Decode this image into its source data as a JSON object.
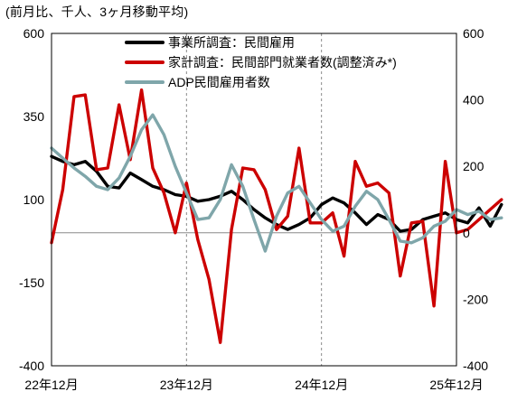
{
  "chart_data": {
    "type": "line",
    "unit_note": "(前月比、千人、3ヶ月移動平均)",
    "x_start": "2022-12",
    "x_end": "2025-12",
    "x_tick_labels": [
      "22年12月",
      "23年12月",
      "24年12月",
      "25年12月"
    ],
    "y_left_ticks": [
      600,
      350,
      100,
      -150,
      -400
    ],
    "y_right_ticks": [
      600,
      400,
      200,
      0,
      -200,
      -400
    ],
    "y_left_range": [
      -400,
      600
    ],
    "y_right_range": [
      -400,
      600
    ],
    "grid": "vertical dashed lines at each December, horizontal zero line",
    "legend_placement": "top-center",
    "series": [
      {
        "name": "事業所調査：民間雇用",
        "color": "#000000",
        "axis": "left",
        "values": [
          230,
          215,
          205,
          215,
          185,
          140,
          135,
          180,
          160,
          140,
          130,
          115,
          110,
          95,
          100,
          110,
          125,
          100,
          70,
          45,
          25,
          10,
          25,
          45,
          85,
          105,
          90,
          60,
          25,
          55,
          40,
          5,
          10,
          40,
          50,
          60,
          40,
          30,
          75,
          20,
          85
        ]
      },
      {
        "name": "家計調査：民間部門就業者数(調整済み*)",
        "color": "#cc0000",
        "axis": "right",
        "values": [
          -30,
          130,
          410,
          415,
          190,
          195,
          385,
          220,
          430,
          195,
          120,
          0,
          150,
          -20,
          -140,
          -330,
          10,
          195,
          190,
          130,
          10,
          50,
          255,
          30,
          30,
          60,
          -70,
          215,
          140,
          150,
          120,
          -130,
          30,
          35,
          -220,
          215,
          0,
          10,
          40,
          70,
          100
        ]
      },
      {
        "name": "ADP民間雇用者数",
        "color": "#7fa6aa",
        "axis": "left",
        "values": [
          255,
          225,
          195,
          170,
          140,
          130,
          165,
          230,
          310,
          355,
          295,
          200,
          120,
          40,
          45,
          100,
          205,
          140,
          40,
          -55,
          50,
          120,
          140,
          90,
          40,
          5,
          20,
          80,
          125,
          100,
          40,
          -25,
          -30,
          -15,
          20,
          35,
          70,
          55,
          65,
          40,
          45
        ]
      }
    ]
  }
}
